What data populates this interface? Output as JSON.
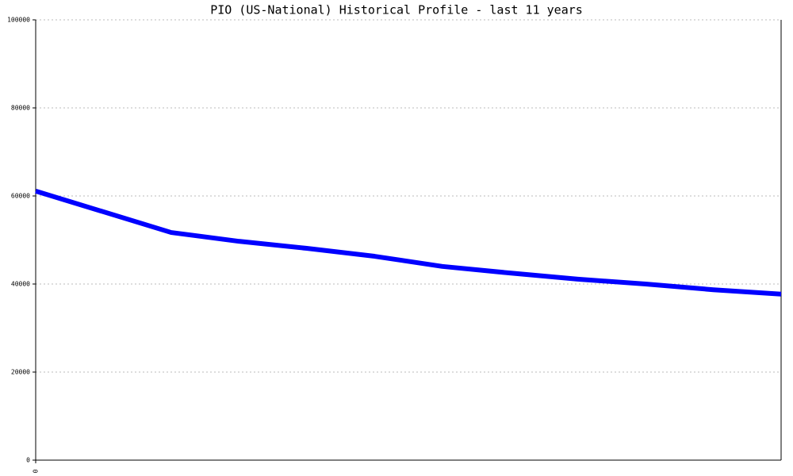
{
  "chart_data": {
    "type": "line",
    "title": "PIO (US-National) Historical Profile - last 11 years",
    "x": [
      0,
      2,
      3,
      4,
      5,
      6,
      7,
      8,
      9,
      10,
      11
    ],
    "xlim": [
      0,
      11
    ],
    "xticks": [
      0
    ],
    "series": [
      {
        "color": "#0000ff",
        "values": [
          61100,
          51700,
          49700,
          48100,
          46300,
          44000,
          42500,
          41100,
          40000,
          38700,
          37700
        ]
      }
    ],
    "ylim": [
      0,
      100000
    ],
    "yticks": [
      0,
      20000,
      40000,
      60000,
      80000,
      100000
    ],
    "grid": true
  }
}
